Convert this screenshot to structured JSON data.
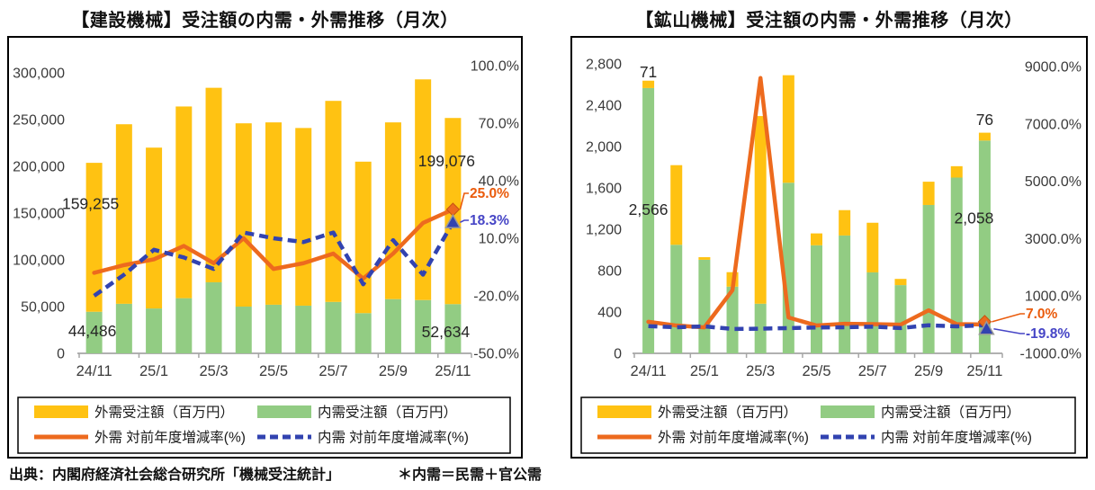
{
  "footer": {
    "source": "出典：内閣府経済社会総合研究所「機械受注統計」",
    "note": "＊内需＝民需＋官公需"
  },
  "legend": {
    "foreign_bar": "外需受注額（百万円）",
    "domestic_bar": "内需受注額（百万円）",
    "foreign_line": "外需 対前年度増減率(%)",
    "domestic_line": "内需 対前年度増減率(%)"
  },
  "colors": {
    "foreign_bar": "#FFC212",
    "domestic_bar": "#92CC83",
    "foreign_line": "#ED6A1E",
    "domestic_line": "#3243B0",
    "foreign_text": "#EA5B0C",
    "domestic_text": "#4645C6",
    "axis_line": "#A6A6A6",
    "tick_text": "#3A3A3A",
    "annotation_text": "#262626"
  },
  "chart_data": [
    {
      "type": "bar+line",
      "title": "【建設機械】受注額の内需・外需推移（月次）",
      "months": [
        "24/11",
        "24/12",
        "25/1",
        "25/2",
        "25/3",
        "25/4",
        "25/5",
        "25/6",
        "25/7",
        "25/8",
        "25/9",
        "25/10",
        "25/11"
      ],
      "x_tick_indices": [
        0,
        2,
        4,
        6,
        8,
        10,
        12
      ],
      "x_tick_labels": [
        "24/11",
        "25/1",
        "25/3",
        "25/5",
        "25/7",
        "25/9",
        "25/11"
      ],
      "bar_axis": {
        "min": 0,
        "max": 300000,
        "tick_values": [
          300000,
          250000,
          200000,
          150000,
          100000,
          50000,
          0
        ],
        "tick_labels": [
          "300,000",
          "250,000",
          "200,000",
          "150,000",
          "100,000",
          "50,000",
          "0"
        ]
      },
      "pct_axis": {
        "min": -50,
        "max": 100,
        "tick_values": [
          100,
          70,
          40,
          10,
          -20,
          -50
        ],
        "tick_labels": [
          "100.0%",
          "70.0%",
          "40.0%",
          "10.0%",
          "-20.0%",
          "-50.0%"
        ]
      },
      "series": [
        {
          "name": "内需受注額（百万円）",
          "key": "domestic_bar",
          "kind": "bar",
          "values": [
            44486,
            53000,
            48000,
            59000,
            76000,
            50000,
            52000,
            51000,
            55000,
            43000,
            58000,
            57000,
            52634
          ]
        },
        {
          "name": "外需受注額（百万円）",
          "key": "foreign_bar",
          "kind": "bar",
          "values": [
            159255,
            192000,
            172000,
            205000,
            208000,
            196000,
            195000,
            190000,
            215000,
            162000,
            189000,
            236000,
            199076
          ]
        },
        {
          "name": "外需 対前年度増減率(%)",
          "key": "foreign_line",
          "kind": "line",
          "values": [
            -8,
            -4,
            -1,
            6,
            -3,
            10,
            -6,
            -3,
            2,
            -11,
            2,
            18,
            25
          ]
        },
        {
          "name": "内需 対前年度増減率(%)",
          "key": "domestic_line",
          "kind": "line-dashed",
          "values": [
            -20,
            -9,
            4,
            0,
            -6,
            13,
            10,
            8,
            13,
            -14,
            9,
            -9,
            18.3
          ]
        }
      ],
      "annotations": [
        {
          "text": "159,255",
          "month": 0,
          "value": 160000,
          "dx": -4
        },
        {
          "text": "44,486",
          "month": 0,
          "value": 24000,
          "dx": -2
        },
        {
          "text": "199,076",
          "month": 12,
          "value": 206000,
          "dx": -7
        },
        {
          "text": "52,634",
          "month": 12,
          "value": 23000,
          "dx": -8
        }
      ],
      "callouts": [
        {
          "series": "foreign",
          "text": "25.0%",
          "value": 25,
          "marker": "diamond"
        },
        {
          "series": "domestic",
          "text": "18.3%",
          "value": 18.3,
          "marker": "triangle"
        }
      ]
    },
    {
      "type": "bar+line",
      "title": "【鉱山機械】受注額の内需・外需推移（月次）",
      "months": [
        "24/11",
        "24/12",
        "25/1",
        "25/2",
        "25/3",
        "25/4",
        "25/5",
        "25/6",
        "25/7",
        "25/8",
        "25/9",
        "25/10",
        "25/11"
      ],
      "x_tick_indices": [
        0,
        2,
        4,
        6,
        8,
        10,
        12
      ],
      "x_tick_labels": [
        "24/11",
        "25/1",
        "25/3",
        "25/5",
        "25/7",
        "25/9",
        "25/11"
      ],
      "bar_axis": {
        "min": 0,
        "max": 2800,
        "tick_values": [
          2800,
          2400,
          2000,
          1600,
          1200,
          800,
          400,
          0
        ],
        "tick_labels": [
          "2,800",
          "2,400",
          "2,000",
          "1,600",
          "1,200",
          "800",
          "400",
          "0"
        ]
      },
      "pct_axis": {
        "min": -1000,
        "max": 9000,
        "tick_values": [
          9000,
          7000,
          5000,
          3000,
          1000,
          -1000
        ],
        "tick_labels": [
          "9000.0%",
          "7000.0%",
          "5000.0%",
          "3000.0%",
          "1000.0%",
          "-1000.0%"
        ]
      },
      "series": [
        {
          "name": "内需受注額（百万円）",
          "key": "domestic_bar",
          "kind": "bar",
          "values": [
            2566,
            1050,
            905,
            645,
            480,
            1650,
            1045,
            1140,
            783,
            660,
            1435,
            1700,
            2058
          ]
        },
        {
          "name": "外需受注額（百万円）",
          "key": "foreign_bar",
          "kind": "bar",
          "values": [
            71,
            770,
            25,
            140,
            1815,
            1040,
            115,
            245,
            480,
            60,
            225,
            110,
            76
          ]
        },
        {
          "name": "外需 対前年度増減率(%)",
          "key": "foreign_line",
          "kind": "line",
          "values": [
            100,
            -30,
            -95,
            1200,
            8600,
            250,
            -30,
            30,
            20,
            0,
            500,
            20,
            7
          ]
        },
        {
          "name": "内需 対前年度増減率(%)",
          "key": "domestic_line",
          "kind": "line-dashed",
          "values": [
            -50,
            -90,
            -60,
            -150,
            -140,
            -120,
            -100,
            -90,
            -70,
            -120,
            -20,
            -60,
            -19.8
          ]
        }
      ],
      "annotations": [
        {
          "text": "71",
          "month": 0,
          "value": 2720,
          "dx": 0
        },
        {
          "text": "2,566",
          "month": 0,
          "value": 1390,
          "dx": 0
        },
        {
          "text": "76",
          "month": 12,
          "value": 2260,
          "dx": 0
        },
        {
          "text": "2,058",
          "month": 12,
          "value": 1310,
          "dx": -12
        }
      ],
      "callouts": [
        {
          "series": "foreign",
          "text": "7.0%",
          "value": 7,
          "marker": "diamond"
        },
        {
          "series": "domestic",
          "text": "-19.8%",
          "value": -19.8,
          "marker": "triangle"
        }
      ]
    }
  ]
}
